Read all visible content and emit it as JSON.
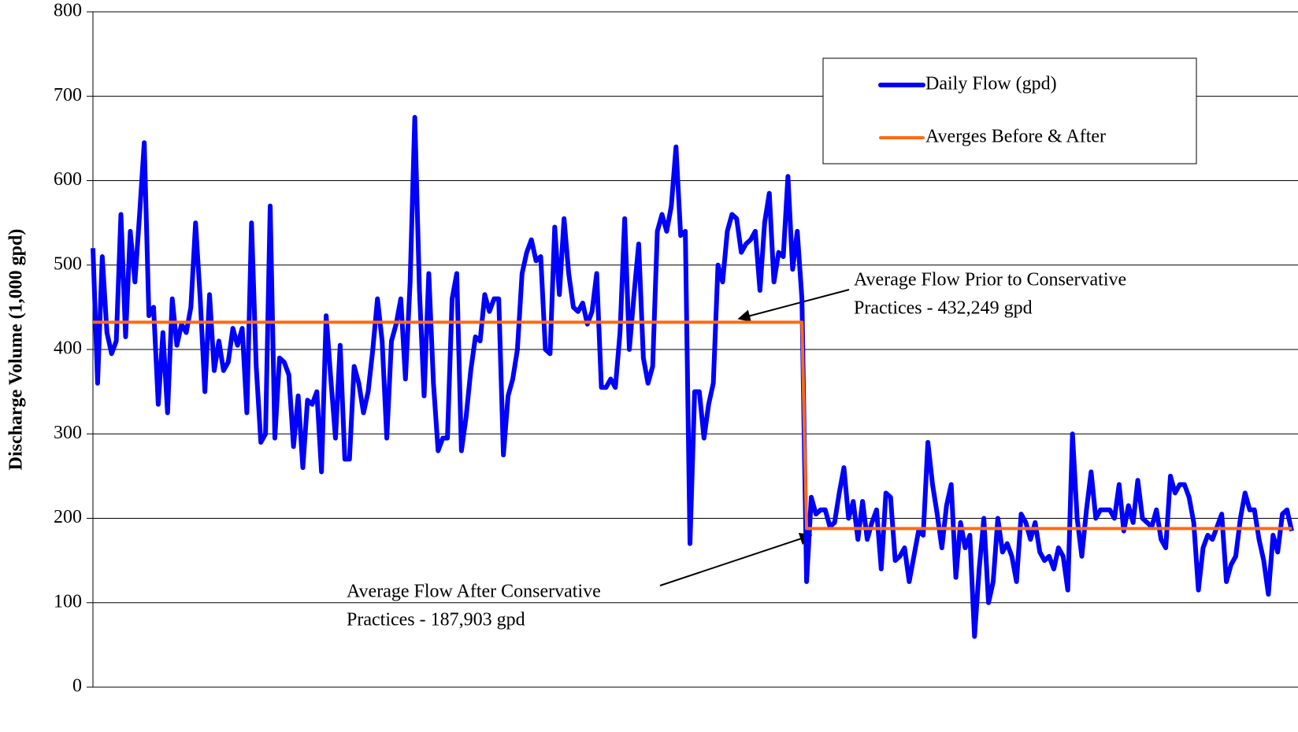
{
  "chart_data": {
    "type": "line",
    "y_label": "Discharge Volume (1,000 gpd)",
    "ylim": [
      0,
      800
    ],
    "yticks": [
      0,
      100,
      200,
      300,
      400,
      500,
      600,
      700,
      800
    ],
    "grid": true,
    "legend": "upper right",
    "series": [
      {
        "name": "Daily Flow (gpd)",
        "color": "#0000ff",
        "values": [
          520,
          360,
          510,
          420,
          395,
          410,
          560,
          415,
          540,
          480,
          560,
          645,
          440,
          450,
          335,
          420,
          325,
          460,
          405,
          430,
          420,
          450,
          550,
          460,
          350,
          465,
          375,
          410,
          375,
          385,
          425,
          405,
          425,
          325,
          550,
          380,
          290,
          300,
          570,
          295,
          390,
          385,
          370,
          285,
          345,
          260,
          340,
          335,
          350,
          255,
          440,
          365,
          295,
          405,
          270,
          270,
          380,
          360,
          325,
          350,
          400,
          460,
          410,
          295,
          410,
          430,
          460,
          365,
          480,
          675,
          470,
          345,
          490,
          360,
          280,
          295,
          295,
          460,
          490,
          280,
          320,
          375,
          415,
          410,
          465,
          445,
          460,
          460,
          275,
          345,
          365,
          400,
          490,
          515,
          530,
          505,
          510,
          400,
          395,
          545,
          465,
          555,
          490,
          450,
          445,
          455,
          430,
          445,
          490,
          355,
          355,
          365,
          355,
          420,
          555,
          400,
          465,
          525,
          390,
          360,
          380,
          540,
          560,
          540,
          570,
          640,
          535,
          540,
          170,
          350,
          350,
          295,
          335,
          360,
          500,
          480,
          540,
          560,
          555,
          515,
          525,
          530,
          540,
          470,
          550,
          585,
          480,
          515,
          510,
          605,
          495,
          540,
          460,
          125,
          225,
          205,
          210,
          210,
          190,
          195,
          230,
          260,
          200,
          220,
          175,
          220,
          175,
          195,
          210,
          140,
          230,
          225,
          150,
          155,
          165,
          125,
          155,
          185,
          180,
          290,
          240,
          205,
          165,
          215,
          240,
          130,
          195,
          165,
          180,
          60,
          140,
          200,
          100,
          125,
          200,
          160,
          170,
          155,
          125,
          205,
          195,
          175,
          195,
          160,
          150,
          155,
          140,
          165,
          155,
          115,
          300,
          200,
          155,
          210,
          255,
          200,
          210,
          210,
          210,
          200,
          240,
          185,
          215,
          195,
          245,
          200,
          195,
          190,
          210,
          175,
          165,
          250,
          230,
          240,
          240,
          225,
          195,
          115,
          165,
          180,
          175,
          190,
          205,
          125,
          145,
          155,
          200,
          230,
          210,
          210,
          175,
          150,
          110,
          180,
          160,
          205,
          210,
          185
        ]
      },
      {
        "name": "Averges Before & After",
        "color": "#ff6a13",
        "values": [
          432.249,
          432.249,
          432.249,
          432.249,
          432.249,
          432.249,
          432.249,
          432.249,
          432.249,
          432.249,
          432.249,
          432.249,
          432.249,
          432.249,
          432.249,
          432.249,
          432.249,
          432.249,
          432.249,
          432.249,
          432.249,
          432.249,
          432.249,
          432.249,
          432.249,
          432.249,
          432.249,
          432.249,
          432.249,
          432.249,
          432.249,
          432.249,
          432.249,
          432.249,
          432.249,
          432.249,
          432.249,
          432.249,
          432.249,
          432.249,
          432.249,
          432.249,
          432.249,
          432.249,
          432.249,
          432.249,
          432.249,
          432.249,
          432.249,
          432.249,
          432.249,
          432.249,
          432.249,
          432.249,
          432.249,
          432.249,
          432.249,
          432.249,
          432.249,
          432.249,
          432.249,
          432.249,
          432.249,
          432.249,
          432.249,
          432.249,
          432.249,
          432.249,
          432.249,
          432.249,
          432.249,
          432.249,
          432.249,
          432.249,
          432.249,
          432.249,
          432.249,
          432.249,
          432.249,
          432.249,
          432.249,
          432.249,
          432.249,
          432.249,
          432.249,
          432.249,
          432.249,
          432.249,
          432.249,
          432.249,
          432.249,
          432.249,
          432.249,
          432.249,
          432.249,
          432.249,
          432.249,
          432.249,
          432.249,
          432.249,
          432.249,
          432.249,
          432.249,
          432.249,
          432.249,
          432.249,
          432.249,
          432.249,
          432.249,
          432.249,
          432.249,
          432.249,
          432.249,
          432.249,
          432.249,
          432.249,
          432.249,
          432.249,
          432.249,
          432.249,
          432.249,
          432.249,
          432.249,
          432.249,
          432.249,
          432.249,
          432.249,
          432.249,
          432.249,
          432.249,
          432.249,
          432.249,
          432.249,
          432.249,
          432.249,
          432.249,
          432.249,
          432.249,
          432.249,
          432.249,
          432.249,
          432.249,
          432.249,
          432.249,
          432.249,
          432.249,
          432.249,
          432.249,
          432.249,
          432.249,
          432.249,
          432.249,
          432.249,
          187.903,
          187.903,
          187.903,
          187.903,
          187.903,
          187.903,
          187.903,
          187.903,
          187.903,
          187.903,
          187.903,
          187.903,
          187.903,
          187.903,
          187.903,
          187.903,
          187.903,
          187.903,
          187.903,
          187.903,
          187.903,
          187.903,
          187.903,
          187.903,
          187.903,
          187.903,
          187.903,
          187.903,
          187.903,
          187.903,
          187.903,
          187.903,
          187.903,
          187.903,
          187.903,
          187.903,
          187.903,
          187.903,
          187.903,
          187.903,
          187.903,
          187.903,
          187.903,
          187.903,
          187.903,
          187.903,
          187.903,
          187.903,
          187.903,
          187.903,
          187.903,
          187.903,
          187.903,
          187.903,
          187.903,
          187.903,
          187.903,
          187.903,
          187.903,
          187.903,
          187.903,
          187.903,
          187.903,
          187.903,
          187.903,
          187.903,
          187.903,
          187.903,
          187.903,
          187.903,
          187.903,
          187.903,
          187.903,
          187.903,
          187.903,
          187.903,
          187.903,
          187.903,
          187.903,
          187.903,
          187.903,
          187.903,
          187.903,
          187.903,
          187.903,
          187.903,
          187.903,
          187.903,
          187.903,
          187.903,
          187.903,
          187.903,
          187.903,
          187.903,
          187.903,
          187.903,
          187.903,
          187.903,
          187.903,
          187.903,
          187.903,
          187.903,
          187.903,
          187.903,
          187.903
        ]
      }
    ],
    "annotations": [
      {
        "text": [
          "Average Flow Prior to Conservative",
          "Practices - 432,249 gpd"
        ]
      },
      {
        "text": [
          "Average Flow After Conservative",
          "Practices - 187,903 gpd"
        ]
      }
    ]
  }
}
